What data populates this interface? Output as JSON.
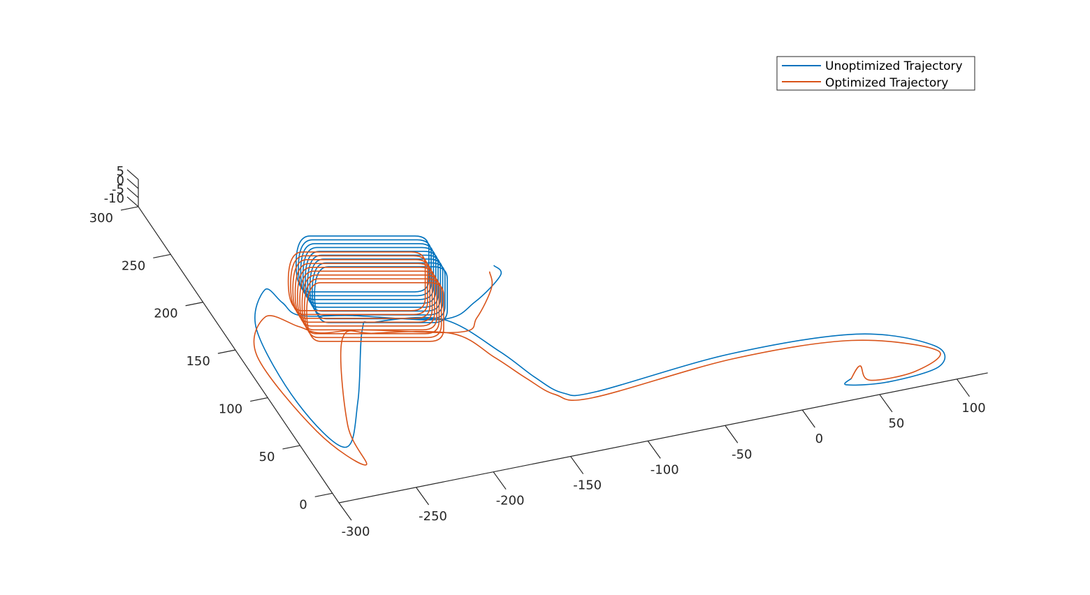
{
  "chart_data": {
    "type": "line",
    "view": "3d",
    "title": "",
    "xlabel": "",
    "ylabel": "",
    "zlabel": "",
    "xlim": [
      -300,
      120
    ],
    "ylim": [
      -10,
      300
    ],
    "zlim": [
      -10,
      5
    ],
    "x_ticks": [
      "-300",
      "-250",
      "-200",
      "-150",
      "-100",
      "-50",
      "0",
      "50",
      "100"
    ],
    "y_ticks": [
      "0",
      "50",
      "100",
      "150",
      "200",
      "250",
      "300"
    ],
    "z_ticks": [
      "5",
      "0",
      "-5",
      "-10"
    ],
    "grid": false,
    "legend_position": "top-right",
    "series": [
      {
        "name": "Unoptimized Trajectory",
        "color": "#0072BD",
        "points": [
          [
            40,
            10
          ],
          [
            35,
            5
          ],
          [
            60,
            0
          ],
          [
            95,
            5
          ],
          [
            100,
            25
          ],
          [
            60,
            50
          ],
          [
            -20,
            55
          ],
          [
            -110,
            45
          ],
          [
            -130,
            50
          ],
          [
            -140,
            70
          ],
          [
            -150,
            100
          ],
          [
            -170,
            140
          ],
          [
            -210,
            150
          ],
          [
            -220,
            145
          ],
          [
            -250,
            80
          ],
          [
            -275,
            40
          ],
          [
            -285,
            90
          ],
          [
            -280,
            165
          ],
          [
            -260,
            200
          ],
          [
            -255,
            185
          ],
          [
            -250,
            170
          ],
          [
            -220,
            160
          ],
          [
            -170,
            140
          ],
          [
            -145,
            150
          ],
          [
            -120,
            170
          ],
          [
            -120,
            180
          ]
        ]
      },
      {
        "name": "Optimized Trajectory",
        "color": "#D95319",
        "points": [
          [
            40,
            10
          ],
          [
            50,
            20
          ],
          [
            50,
            5
          ],
          [
            80,
            5
          ],
          [
            100,
            20
          ],
          [
            55,
            45
          ],
          [
            -20,
            50
          ],
          [
            -115,
            40
          ],
          [
            -135,
            50
          ],
          [
            -145,
            70
          ],
          [
            -155,
            95
          ],
          [
            -170,
            125
          ],
          [
            -215,
            140
          ],
          [
            -235,
            140
          ],
          [
            -265,
            60
          ],
          [
            -270,
            20
          ],
          [
            -285,
            60
          ],
          [
            -290,
            140
          ],
          [
            -270,
            175
          ],
          [
            -255,
            160
          ],
          [
            -245,
            150
          ],
          [
            -220,
            145
          ],
          [
            -165,
            125
          ],
          [
            -150,
            135
          ],
          [
            -130,
            160
          ],
          [
            -125,
            175
          ]
        ]
      }
    ]
  }
}
